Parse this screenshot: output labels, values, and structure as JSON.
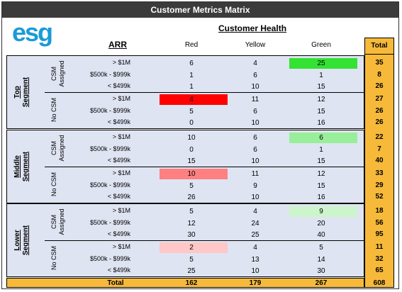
{
  "title": "Customer Metrics Matrix",
  "logo": {
    "text": "esg"
  },
  "header": {
    "health": "Customer Health",
    "arr": "ARR",
    "red": "Red",
    "yellow": "Yellow",
    "green": "Green",
    "total": "Total"
  },
  "colors": {
    "red_strong": "#ff0000",
    "red_mid": "#ff8080",
    "red_light": "#ffc7c7",
    "green_strong": "#33e233",
    "green_mid": "#99ee99",
    "green_light": "#ccf5cc",
    "total_bg": "#f6b93a",
    "segment_bg": "#dfe4f2"
  },
  "chart_data": {
    "type": "table",
    "title": "Customer Metrics Matrix",
    "columns": [
      "Red",
      "Yellow",
      "Green",
      "Total"
    ],
    "segments": [
      {
        "name": "Top Segment",
        "groups": [
          {
            "csm": "CSM Assigned",
            "rows": [
              {
                "arr": "> $1M",
                "red": 6,
                "yellow": 4,
                "green": 25,
                "total": 35
              },
              {
                "arr": "$500k - $999k",
                "red": 1,
                "yellow": 6,
                "green": 1,
                "total": 8
              },
              {
                "arr": "< $499k",
                "red": 1,
                "yellow": 10,
                "green": 15,
                "total": 26
              }
            ]
          },
          {
            "csm": "No CSM",
            "rows": [
              {
                "arr": "> $1M",
                "red": 4,
                "yellow": 11,
                "green": 12,
                "total": 27
              },
              {
                "arr": "$500k - $999k",
                "red": 5,
                "yellow": 6,
                "green": 15,
                "total": 26
              },
              {
                "arr": "< $499k",
                "red": 0,
                "yellow": 10,
                "green": 16,
                "total": 26
              }
            ]
          }
        ]
      },
      {
        "name": "Middle Segment",
        "groups": [
          {
            "csm": "CSM Assigned",
            "rows": [
              {
                "arr": "> $1M",
                "red": 10,
                "yellow": 6,
                "green": 6,
                "total": 22
              },
              {
                "arr": "$500k - $999k",
                "red": 0,
                "yellow": 6,
                "green": 1,
                "total": 7
              },
              {
                "arr": "< $499k",
                "red": 15,
                "yellow": 10,
                "green": 15,
                "total": 40
              }
            ]
          },
          {
            "csm": "No CSM",
            "rows": [
              {
                "arr": "> $1M",
                "red": 10,
                "yellow": 11,
                "green": 12,
                "total": 33
              },
              {
                "arr": "$500k - $999k",
                "red": 5,
                "yellow": 9,
                "green": 15,
                "total": 29
              },
              {
                "arr": "< $499k",
                "red": 26,
                "yellow": 10,
                "green": 16,
                "total": 52
              }
            ]
          }
        ]
      },
      {
        "name": "Lower Segment",
        "groups": [
          {
            "csm": "CSM Assigned",
            "rows": [
              {
                "arr": "> $1M",
                "red": 5,
                "yellow": 4,
                "green": 9,
                "total": 18
              },
              {
                "arr": "$500k - $999k",
                "red": 12,
                "yellow": 24,
                "green": 20,
                "total": 56
              },
              {
                "arr": "< $499k",
                "red": 30,
                "yellow": 25,
                "green": 40,
                "total": 95
              }
            ]
          },
          {
            "csm": "No CSM",
            "rows": [
              {
                "arr": "> $1M",
                "red": 2,
                "yellow": 4,
                "green": 5,
                "total": 11
              },
              {
                "arr": "$500k - $999k",
                "red": 5,
                "yellow": 13,
                "green": 14,
                "total": 32
              },
              {
                "arr": "< $499k",
                "red": 25,
                "yellow": 10,
                "green": 30,
                "total": 65
              }
            ]
          }
        ]
      }
    ],
    "highlights": [
      {
        "segment": 0,
        "group": 0,
        "row": 0,
        "column": "green",
        "color": "#33e233"
      },
      {
        "segment": 0,
        "group": 1,
        "row": 0,
        "column": "red",
        "color": "#ff0000"
      },
      {
        "segment": 1,
        "group": 0,
        "row": 0,
        "column": "green",
        "color": "#99ee99"
      },
      {
        "segment": 1,
        "group": 1,
        "row": 0,
        "column": "red",
        "color": "#ff8080"
      },
      {
        "segment": 2,
        "group": 0,
        "row": 0,
        "column": "green",
        "color": "#ccf5cc"
      },
      {
        "segment": 2,
        "group": 1,
        "row": 0,
        "column": "red",
        "color": "#ffc7c7"
      }
    ],
    "totals": {
      "label": "Total",
      "red": 162,
      "yellow": 179,
      "green": 267,
      "total": 608
    }
  }
}
